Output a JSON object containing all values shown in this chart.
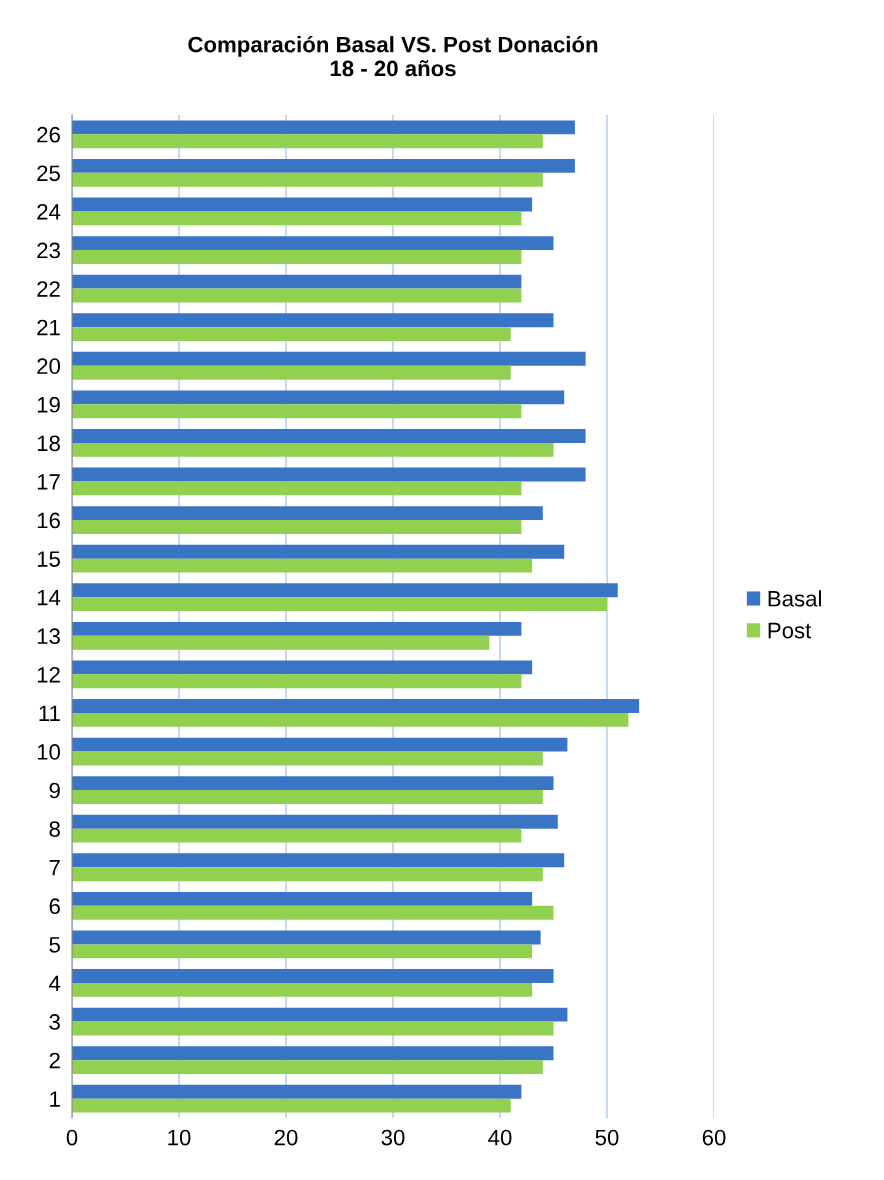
{
  "chart_data": {
    "type": "bar",
    "orientation": "horizontal",
    "title": "Comparación Basal VS. Post Donación\n18 - 20 años",
    "categories": [
      "26",
      "25",
      "24",
      "23",
      "22",
      "21",
      "20",
      "19",
      "18",
      "17",
      "16",
      "15",
      "14",
      "13",
      "12",
      "11",
      "10",
      "9",
      "8",
      "7",
      "6",
      "5",
      "4",
      "3",
      "2",
      "1"
    ],
    "series": [
      {
        "name": "Basal",
        "color": "#3a74c4",
        "values": [
          47,
          47,
          43,
          45,
          42,
          45,
          48,
          46,
          48,
          48,
          44,
          46,
          51,
          42,
          43,
          53,
          46.3,
          45,
          45.4,
          46,
          43,
          43.8,
          45,
          46.3,
          45,
          42
        ]
      },
      {
        "name": "Post",
        "color": "#92d050",
        "values": [
          44,
          44,
          42,
          42,
          42,
          41,
          41,
          42,
          45,
          42,
          42,
          43,
          50,
          39,
          42,
          52,
          44,
          44,
          42,
          44,
          45,
          43,
          43,
          45,
          44,
          41
        ]
      }
    ],
    "xlim": [
      0,
      60
    ],
    "xticks": [
      0,
      10,
      20,
      30,
      40,
      50,
      60
    ],
    "grid": "x",
    "legend": "right"
  }
}
